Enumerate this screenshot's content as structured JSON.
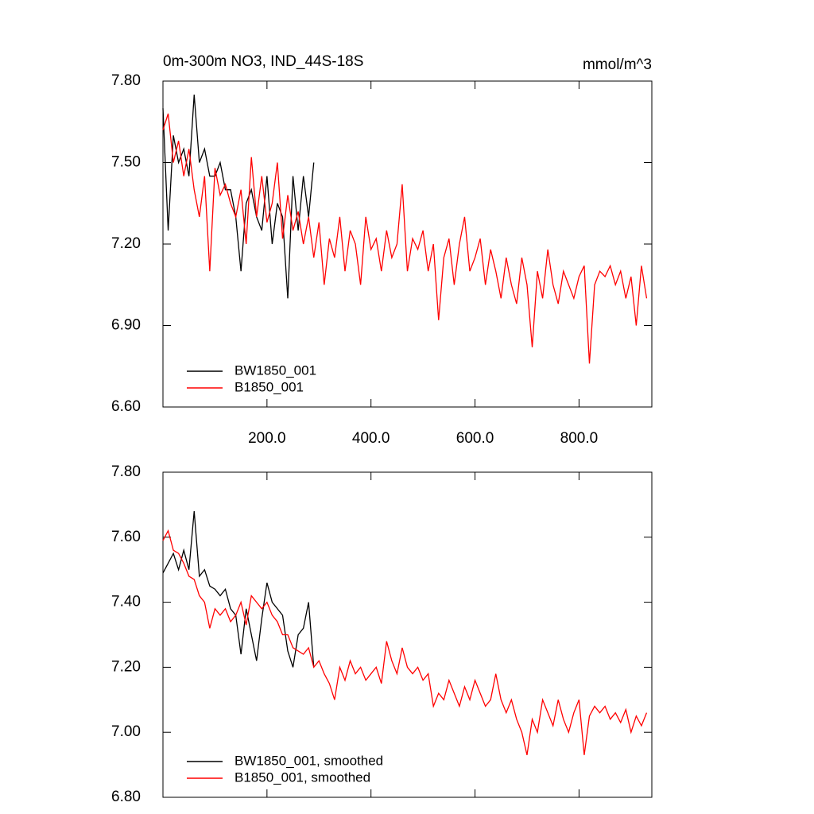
{
  "chart_data": [
    {
      "type": "line",
      "title": "0m-300m NO3, IND_44S-18S",
      "units": "mmol/m^3",
      "xlim": [
        0,
        940
      ],
      "ylim": [
        6.6,
        7.8
      ],
      "xticks": [
        {
          "value": 200,
          "label": "200.0"
        },
        {
          "value": 400,
          "label": "400.0"
        },
        {
          "value": 600,
          "label": "600.0"
        },
        {
          "value": 800,
          "label": "800.0"
        }
      ],
      "yticks": [
        {
          "value": 6.6,
          "label": "6.60"
        },
        {
          "value": 6.9,
          "label": "6.90"
        },
        {
          "value": 7.2,
          "label": "7.20"
        },
        {
          "value": 7.5,
          "label": "7.50"
        },
        {
          "value": 7.8,
          "label": "7.80"
        }
      ],
      "show_xtick_labels": true,
      "legend": "lower left",
      "series": [
        {
          "name": "BW1850_001",
          "color": "#000000",
          "x": [
            0,
            10,
            20,
            30,
            40,
            50,
            60,
            70,
            80,
            90,
            100,
            110,
            120,
            130,
            140,
            150,
            160,
            170,
            180,
            190,
            200,
            210,
            220,
            230,
            240,
            250,
            260,
            270,
            280,
            290
          ],
          "values": [
            7.7,
            7.25,
            7.6,
            7.5,
            7.55,
            7.45,
            7.75,
            7.5,
            7.55,
            7.45,
            7.45,
            7.5,
            7.4,
            7.4,
            7.3,
            7.1,
            7.35,
            7.4,
            7.3,
            7.25,
            7.45,
            7.2,
            7.35,
            7.3,
            7.0,
            7.45,
            7.25,
            7.45,
            7.3,
            7.5
          ]
        },
        {
          "name": "B1850_001",
          "color": "#ff0000",
          "x": [
            0,
            10,
            20,
            30,
            40,
            50,
            60,
            70,
            80,
            90,
            100,
            110,
            120,
            130,
            140,
            150,
            160,
            170,
            180,
            190,
            200,
            210,
            220,
            230,
            240,
            250,
            260,
            270,
            280,
            290,
            300,
            310,
            320,
            330,
            340,
            350,
            360,
            370,
            380,
            390,
            400,
            410,
            420,
            430,
            440,
            450,
            460,
            470,
            480,
            490,
            500,
            510,
            520,
            530,
            540,
            550,
            560,
            570,
            580,
            590,
            600,
            610,
            620,
            630,
            640,
            650,
            660,
            670,
            680,
            690,
            700,
            710,
            720,
            730,
            740,
            750,
            760,
            770,
            780,
            790,
            800,
            810,
            820,
            830,
            840,
            850,
            860,
            870,
            880,
            890,
            900,
            910,
            920,
            930
          ],
          "values": [
            7.62,
            7.68,
            7.5,
            7.58,
            7.45,
            7.55,
            7.4,
            7.3,
            7.45,
            7.1,
            7.48,
            7.38,
            7.42,
            7.35,
            7.3,
            7.4,
            7.2,
            7.52,
            7.3,
            7.45,
            7.28,
            7.35,
            7.5,
            7.22,
            7.38,
            7.25,
            7.32,
            7.2,
            7.3,
            7.15,
            7.28,
            7.05,
            7.22,
            7.15,
            7.3,
            7.1,
            7.25,
            7.2,
            7.05,
            7.3,
            7.18,
            7.22,
            7.1,
            7.25,
            7.15,
            7.2,
            7.42,
            7.1,
            7.22,
            7.18,
            7.25,
            7.1,
            7.2,
            6.92,
            7.15,
            7.22,
            7.05,
            7.2,
            7.3,
            7.1,
            7.15,
            7.22,
            7.05,
            7.18,
            7.1,
            7.0,
            7.15,
            7.05,
            6.98,
            7.15,
            7.05,
            6.82,
            7.1,
            7.0,
            7.18,
            7.05,
            6.98,
            7.1,
            7.05,
            7.0,
            7.08,
            7.12,
            6.76,
            7.05,
            7.1,
            7.08,
            7.12,
            7.05,
            7.1,
            7.0,
            7.08,
            6.9,
            7.12,
            7.0
          ]
        }
      ]
    },
    {
      "type": "line",
      "xlim": [
        0,
        940
      ],
      "ylim": [
        6.8,
        7.8
      ],
      "xticks": [
        200,
        400,
        600,
        800
      ],
      "yticks": [
        {
          "value": 6.8,
          "label": "6.80"
        },
        {
          "value": 7.0,
          "label": "7.00"
        },
        {
          "value": 7.2,
          "label": "7.20"
        },
        {
          "value": 7.4,
          "label": "7.40"
        },
        {
          "value": 7.6,
          "label": "7.60"
        },
        {
          "value": 7.8,
          "label": "7.80"
        }
      ],
      "show_xtick_labels": false,
      "legend": "lower left",
      "series": [
        {
          "name": "BW1850_001, smoothed",
          "color": "#000000",
          "x": [
            0,
            10,
            20,
            30,
            40,
            50,
            60,
            70,
            80,
            90,
            100,
            110,
            120,
            130,
            140,
            150,
            160,
            170,
            180,
            190,
            200,
            210,
            220,
            230,
            240,
            250,
            260,
            270,
            280,
            290
          ],
          "values": [
            7.49,
            7.52,
            7.55,
            7.5,
            7.56,
            7.5,
            7.68,
            7.48,
            7.5,
            7.45,
            7.44,
            7.42,
            7.44,
            7.38,
            7.36,
            7.24,
            7.38,
            7.3,
            7.22,
            7.35,
            7.46,
            7.4,
            7.38,
            7.36,
            7.25,
            7.2,
            7.3,
            7.32,
            7.4,
            7.2
          ]
        },
        {
          "name": "B1850_001, smoothed",
          "color": "#ff0000",
          "x": [
            0,
            10,
            20,
            30,
            40,
            50,
            60,
            70,
            80,
            90,
            100,
            110,
            120,
            130,
            140,
            150,
            160,
            170,
            180,
            190,
            200,
            210,
            220,
            230,
            240,
            250,
            260,
            270,
            280,
            290,
            300,
            310,
            320,
            330,
            340,
            350,
            360,
            370,
            380,
            390,
            400,
            410,
            420,
            430,
            440,
            450,
            460,
            470,
            480,
            490,
            500,
            510,
            520,
            530,
            540,
            550,
            560,
            570,
            580,
            590,
            600,
            610,
            620,
            630,
            640,
            650,
            660,
            670,
            680,
            690,
            700,
            710,
            720,
            730,
            740,
            750,
            760,
            770,
            780,
            790,
            800,
            810,
            820,
            830,
            840,
            850,
            860,
            870,
            880,
            890,
            900,
            910,
            920,
            930
          ],
          "values": [
            7.59,
            7.62,
            7.56,
            7.55,
            7.52,
            7.48,
            7.47,
            7.42,
            7.4,
            7.32,
            7.38,
            7.36,
            7.38,
            7.34,
            7.36,
            7.4,
            7.33,
            7.42,
            7.4,
            7.38,
            7.4,
            7.36,
            7.34,
            7.3,
            7.3,
            7.26,
            7.25,
            7.24,
            7.26,
            7.2,
            7.22,
            7.18,
            7.15,
            7.1,
            7.2,
            7.16,
            7.22,
            7.18,
            7.2,
            7.16,
            7.18,
            7.2,
            7.15,
            7.28,
            7.22,
            7.18,
            7.26,
            7.2,
            7.18,
            7.2,
            7.16,
            7.18,
            7.08,
            7.12,
            7.1,
            7.16,
            7.12,
            7.08,
            7.14,
            7.1,
            7.16,
            7.12,
            7.08,
            7.1,
            7.18,
            7.1,
            7.06,
            7.1,
            7.04,
            7.0,
            6.93,
            7.04,
            7.0,
            7.1,
            7.06,
            7.02,
            7.1,
            7.04,
            7.0,
            7.06,
            7.1,
            6.93,
            7.05,
            7.08,
            7.06,
            7.08,
            7.04,
            7.06,
            7.03,
            7.07,
            7.0,
            7.05,
            7.02,
            7.06
          ]
        }
      ]
    }
  ]
}
